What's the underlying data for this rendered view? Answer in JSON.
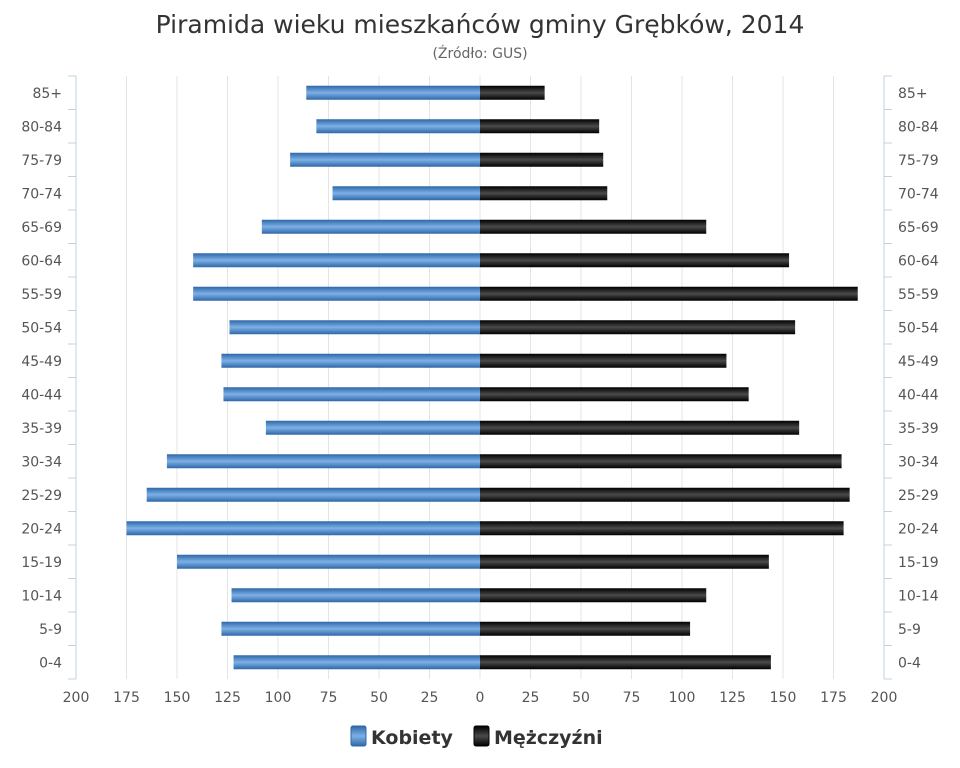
{
  "chart_data": {
    "type": "bar",
    "orientation": "horizontal-population-pyramid",
    "title": "Piramida wieku mieszkańców gminy Grębków, 2014",
    "subtitle": "(Źródło: GUS)",
    "categories": [
      "0-4",
      "5-9",
      "10-14",
      "15-19",
      "20-24",
      "25-29",
      "30-34",
      "35-39",
      "40-44",
      "45-49",
      "50-54",
      "55-59",
      "60-64",
      "65-69",
      "70-74",
      "75-79",
      "80-84",
      "85+"
    ],
    "series": [
      {
        "name": "Kobiety",
        "color": "#4a86c5",
        "values": [
          122,
          128,
          123,
          150,
          175,
          165,
          155,
          106,
          127,
          128,
          124,
          142,
          142,
          108,
          73,
          94,
          81,
          86
        ]
      },
      {
        "name": "Mężczyźni",
        "color": "#1a1a1a",
        "values": [
          144,
          104,
          112,
          143,
          180,
          183,
          179,
          158,
          133,
          122,
          156,
          187,
          153,
          112,
          63,
          61,
          59,
          32
        ]
      }
    ],
    "xlim": [
      -200,
      200
    ],
    "xticks": [
      "200",
      "175",
      "150",
      "125",
      "100",
      "75",
      "50",
      "25",
      "0",
      "25",
      "50",
      "75",
      "100",
      "125",
      "150",
      "175",
      "200"
    ],
    "grid": true,
    "legend": "bottom-center"
  }
}
